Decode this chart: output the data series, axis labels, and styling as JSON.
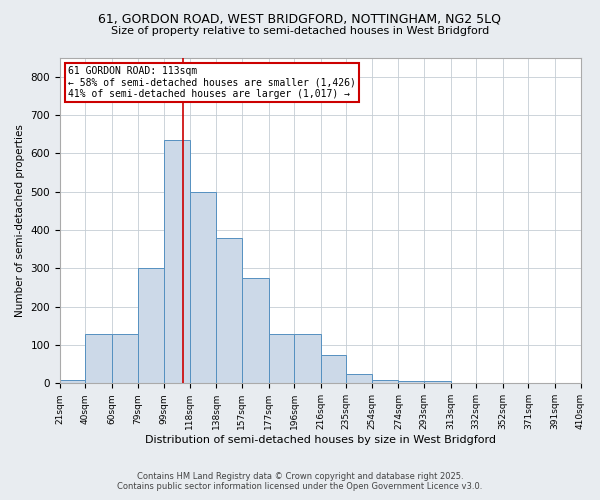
{
  "title1": "61, GORDON ROAD, WEST BRIDGFORD, NOTTINGHAM, NG2 5LQ",
  "title2": "Size of property relative to semi-detached houses in West Bridgford",
  "xlabel": "Distribution of semi-detached houses by size in West Bridgford",
  "ylabel": "Number of semi-detached properties",
  "bin_edges": [
    21,
    40,
    60,
    79,
    99,
    118,
    138,
    157,
    177,
    196,
    216,
    235,
    254,
    274,
    293,
    313,
    332,
    352,
    371,
    391,
    410
  ],
  "bar_heights": [
    8,
    130,
    130,
    300,
    635,
    500,
    380,
    275,
    130,
    130,
    75,
    25,
    10,
    5,
    5,
    0,
    0,
    0,
    0,
    0
  ],
  "bar_color": "#ccd9e8",
  "bar_edge_color": "#5590c0",
  "property_size": 113,
  "vline_color": "#cc0000",
  "annotation_title": "61 GORDON ROAD: 113sqm",
  "annotation_line2": "← 58% of semi-detached houses are smaller (1,426)",
  "annotation_line3": "41% of semi-detached houses are larger (1,017) →",
  "annotation_box_color": "#ffffff",
  "annotation_box_edge_color": "#cc0000",
  "ylim": [
    0,
    850
  ],
  "yticks": [
    0,
    100,
    200,
    300,
    400,
    500,
    600,
    700,
    800
  ],
  "footnote1": "Contains HM Land Registry data © Crown copyright and database right 2025.",
  "footnote2": "Contains public sector information licensed under the Open Government Licence v3.0.",
  "bg_color": "#e8ecf0",
  "plot_bg_color": "#ffffff",
  "grid_color": "#c5cdd5"
}
